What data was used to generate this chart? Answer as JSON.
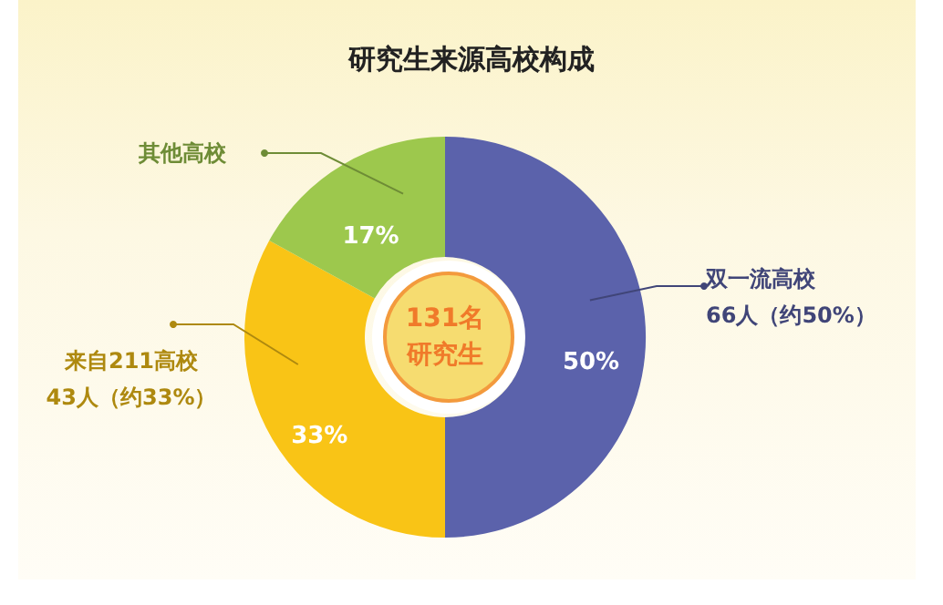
{
  "chart_data": {
    "type": "donut",
    "title": "研究生来源高校构成",
    "categories": [
      "双一流高校",
      "来自211高校",
      "其他高校"
    ],
    "values": [
      50,
      33,
      17
    ],
    "colors": [
      "#5b62ab",
      "#f9c416",
      "#9dc84d"
    ],
    "value_labels": [
      "50%",
      "33%",
      "17%"
    ],
    "annotations": [
      {
        "text": "66人（约50%）",
        "x": "双一流高校"
      },
      {
        "text": "43人（约33%）",
        "x": "来自211高校"
      },
      "131名",
      "研究生"
    ],
    "legend": false
  }
}
